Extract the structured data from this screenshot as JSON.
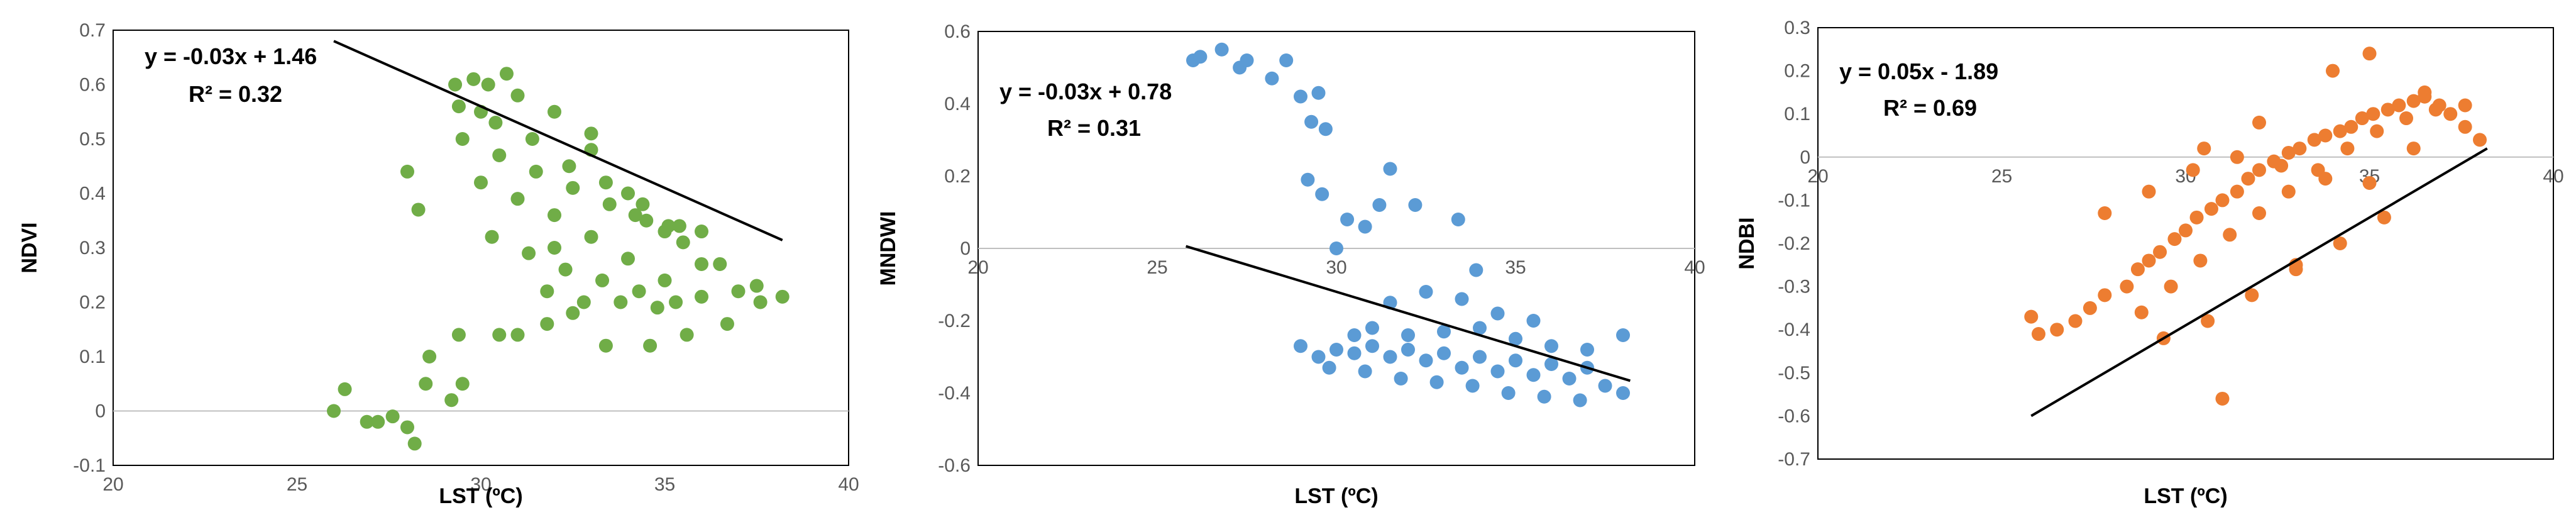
{
  "chart_data": [
    {
      "type": "scatter",
      "xlabel": "LST (ºC)",
      "ylabel": "NDVI",
      "xlim": [
        20,
        40
      ],
      "ylim": [
        -0.1,
        0.7
      ],
      "xticks": [
        "20",
        "25",
        "30",
        "35",
        "40"
      ],
      "yticks": [
        "-0.1",
        "0",
        "0.1",
        "0.2",
        "0.3",
        "0.4",
        "0.5",
        "0.6",
        "0.7"
      ],
      "grid": false,
      "point_color": "#70AD47",
      "trendline": {
        "equation": "y = -0.03x + 1.46",
        "r2": "R² = 0.32",
        "slope": -0.03,
        "intercept": 1.46,
        "x_range": [
          26,
          38.2
        ]
      },
      "series": [
        {
          "x": [
            26.0,
            26.3,
            26.9,
            27.2,
            27.6,
            28.0,
            28.2,
            28.5,
            29.4,
            29.2,
            29.5,
            28.6,
            30.5,
            31.0,
            31.8,
            32.5,
            33.4,
            34.6,
            35.6,
            36.7,
            37.6,
            38.2,
            29.3,
            29.8,
            30.7,
            30.2,
            34.2,
            35.1,
            36.0,
            28.0,
            28.3,
            32.0,
            30.0,
            33.0,
            34.0,
            35.0,
            36.0,
            37.0,
            29.5,
            30.5,
            31.5,
            32.5,
            33.5,
            34.5,
            35.5,
            36.5,
            37.5,
            30.0,
            31.0,
            32.0,
            33.0,
            34.0,
            35.0,
            36.0,
            29.4,
            30.4,
            31.4,
            32.4,
            33.4,
            34.4,
            35.4,
            30.3,
            31.3,
            32.3,
            33.3,
            34.3,
            35.3,
            31.0,
            32.0,
            33.0,
            31.8,
            32.8,
            33.8,
            34.8
          ],
          "y": [
            0.0,
            0.04,
            -0.02,
            -0.02,
            -0.01,
            -0.03,
            -0.06,
            0.05,
            0.14,
            0.02,
            0.05,
            0.1,
            0.14,
            0.14,
            0.16,
            0.18,
            0.12,
            0.12,
            0.14,
            0.16,
            0.2,
            0.21,
            0.6,
            0.61,
            0.62,
            0.6,
            0.36,
            0.34,
            0.33,
            0.44,
            0.37,
            0.3,
            0.55,
            0.48,
            0.4,
            0.33,
            0.27,
            0.22,
            0.5,
            0.47,
            0.44,
            0.41,
            0.38,
            0.35,
            0.31,
            0.27,
            0.23,
            0.42,
            0.39,
            0.36,
            0.32,
            0.28,
            0.24,
            0.21,
            0.56,
            0.53,
            0.5,
            0.45,
            0.42,
            0.38,
            0.34,
            0.32,
            0.29,
            0.26,
            0.24,
            0.22,
            0.2,
            0.58,
            0.55,
            0.51,
            0.22,
            0.2,
            0.2,
            0.19
          ]
        }
      ]
    },
    {
      "type": "scatter",
      "xlabel": "LST (ºC)",
      "ylabel": "MNDWI",
      "xlim": [
        20,
        40
      ],
      "ylim": [
        -0.6,
        0.6
      ],
      "xticks": [
        "20",
        "25",
        "30",
        "35",
        "40"
      ],
      "yticks": [
        "-0.6",
        "-0.4",
        "-0.2",
        "0",
        "0.2",
        "0.4",
        "0.6"
      ],
      "grid": false,
      "point_color": "#5B9BD5",
      "trendline": {
        "equation": "y = -0.03x + 0.78",
        "r2": "R² = 0.31",
        "slope": -0.03,
        "intercept": 0.78,
        "x_range": [
          25.8,
          38.2
        ]
      },
      "series": [
        {
          "x": [
            26.0,
            26.2,
            26.8,
            27.3,
            27.5,
            28.2,
            28.6,
            29.5,
            29.0,
            29.3,
            29.7,
            29.2,
            29.6,
            30.0,
            30.3,
            30.8,
            31.2,
            31.5,
            32.2,
            33.4,
            33.9,
            29.0,
            30.5,
            31.0,
            32.0,
            33.0,
            34.0,
            35.0,
            36.0,
            37.0,
            38.0,
            29.5,
            30.5,
            31.5,
            32.5,
            33.5,
            34.5,
            35.5,
            36.5,
            37.5,
            30.0,
            31.0,
            32.0,
            33.0,
            34.0,
            35.0,
            36.0,
            37.0,
            29.8,
            30.8,
            31.8,
            32.8,
            33.8,
            34.8,
            35.8,
            36.8,
            38.0,
            31.5,
            32.5,
            33.5,
            34.5,
            35.5
          ],
          "y": [
            0.52,
            0.53,
            0.55,
            0.5,
            0.52,
            0.47,
            0.52,
            0.43,
            0.42,
            0.35,
            0.33,
            0.19,
            0.15,
            0.0,
            0.08,
            0.06,
            0.12,
            0.22,
            0.12,
            0.08,
            -0.06,
            -0.27,
            -0.24,
            -0.22,
            -0.24,
            -0.23,
            -0.22,
            -0.25,
            -0.27,
            -0.28,
            -0.24,
            -0.3,
            -0.29,
            -0.3,
            -0.31,
            -0.33,
            -0.34,
            -0.35,
            -0.36,
            -0.38,
            -0.28,
            -0.27,
            -0.28,
            -0.29,
            -0.3,
            -0.31,
            -0.32,
            -0.33,
            -0.33,
            -0.34,
            -0.36,
            -0.37,
            -0.38,
            -0.4,
            -0.41,
            -0.42,
            -0.4,
            -0.15,
            -0.12,
            -0.14,
            -0.18,
            -0.2
          ]
        }
      ]
    },
    {
      "type": "scatter",
      "xlabel": "LST (ºC)",
      "ylabel": "NDBI",
      "xlim": [
        20,
        40
      ],
      "ylim": [
        -0.7,
        0.3
      ],
      "xticks": [
        "20",
        "25",
        "30",
        "35",
        "40"
      ],
      "yticks": [
        "-0.7",
        "-0.6",
        "-0.5",
        "-0.4",
        "-0.3",
        "-0.2",
        "-0.1",
        "0",
        "0.1",
        "0.2",
        "0.3"
      ],
      "grid": false,
      "point_color": "#ED7D31",
      "trendline": {
        "equation": "y = 0.05x - 1.89",
        "r2": "R² = 0.69",
        "slope": 0.05,
        "intercept": -1.89,
        "x_range": [
          25.8,
          38.2
        ]
      },
      "series": [
        {
          "x": [
            25.8,
            26.0,
            26.5,
            27.0,
            27.4,
            27.8,
            28.4,
            28.7,
            29.0,
            29.3,
            29.7,
            30.0,
            30.3,
            30.7,
            31.0,
            31.4,
            31.7,
            32.0,
            32.4,
            32.8,
            33.1,
            33.5,
            33.8,
            34.2,
            34.5,
            34.8,
            35.1,
            35.5,
            35.8,
            36.2,
            36.5,
            36.9,
            37.2,
            37.6,
            38.0,
            28.8,
            29.6,
            30.4,
            31.2,
            32.0,
            32.8,
            33.6,
            34.4,
            35.2,
            36.0,
            36.8,
            37.6,
            27.8,
            29.0,
            30.2,
            31.4,
            32.6,
            33.8,
            35.0,
            36.2,
            29.4,
            30.6,
            31.8,
            33.0,
            34.2,
            35.4,
            35.0,
            36.5,
            30.5,
            31.0,
            34.0,
            32.0,
            33.0
          ],
          "y": [
            -0.37,
            -0.41,
            -0.4,
            -0.38,
            -0.35,
            -0.32,
            -0.3,
            -0.26,
            -0.24,
            -0.22,
            -0.19,
            -0.17,
            -0.14,
            -0.12,
            -0.1,
            -0.08,
            -0.05,
            -0.03,
            -0.01,
            0.01,
            0.02,
            0.04,
            0.05,
            0.06,
            0.07,
            0.09,
            0.1,
            0.11,
            0.12,
            0.13,
            0.14,
            0.12,
            0.1,
            0.07,
            0.04,
            -0.36,
            -0.3,
            -0.24,
            -0.18,
            -0.13,
            -0.08,
            -0.03,
            0.02,
            0.06,
            0.09,
            0.11,
            0.12,
            -0.13,
            -0.08,
            -0.03,
            0.0,
            -0.02,
            -0.05,
            -0.06,
            0.02,
            -0.42,
            -0.38,
            -0.32,
            -0.26,
            -0.2,
            -0.14,
            0.24,
            0.15,
            0.02,
            -0.56,
            0.2,
            0.08,
            -0.25
          ]
        }
      ]
    }
  ]
}
